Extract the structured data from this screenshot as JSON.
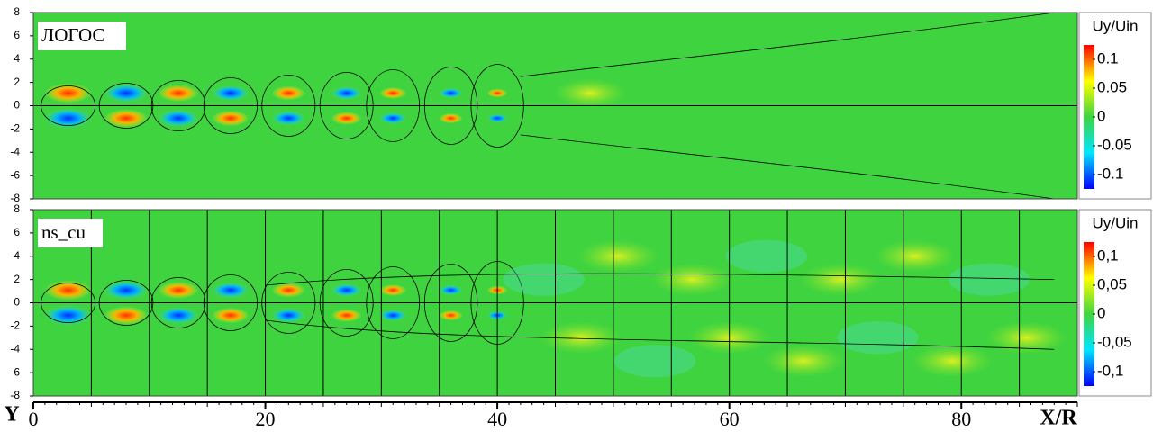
{
  "chart_data": [
    {
      "type": "contour",
      "title": "ЛОГОС",
      "colorbar_label": "Uy/Uin",
      "xlim": [
        0,
        90
      ],
      "ylim": [
        -8,
        8
      ],
      "yticks": [
        -8,
        -6,
        -4,
        -2,
        0,
        2,
        4,
        6,
        8
      ],
      "clim": [
        -0.125,
        0.125
      ],
      "cticks": [
        0.1,
        0.05,
        0,
        -0.05,
        -0.1
      ],
      "colormap": [
        "#0000ff",
        "#00e5ff",
        "#3fd43f",
        "#ffff00",
        "#ff0000"
      ]
    },
    {
      "type": "contour",
      "title": "ns_cu",
      "colorbar_label": "Uy/Uin",
      "xlim": [
        0,
        90
      ],
      "ylim": [
        -8,
        8
      ],
      "yticks": [
        -8,
        -6,
        -4,
        -2,
        0,
        2,
        4,
        6,
        8
      ],
      "clim": [
        -0.125,
        0.125
      ],
      "cticks": [
        {
          "value": 0.1,
          "label": "0,1"
        },
        {
          "value": 0.05,
          "label": "0,05"
        },
        0,
        {
          "value": -0.05,
          "label": "-0,05"
        },
        {
          "value": -0.1,
          "label": "-0,1"
        }
      ],
      "colormap": [
        "#0000ff",
        "#00e5ff",
        "#3fd43f",
        "#ffff00",
        "#ff0000"
      ],
      "vlines": [
        5,
        10,
        15,
        20,
        25,
        30,
        35,
        40,
        45,
        50,
        55,
        60,
        65,
        70,
        75,
        80,
        85
      ],
      "xticks": [
        0,
        20,
        40,
        60,
        80
      ],
      "xlabel": "X/R",
      "ylabel": "Y"
    }
  ]
}
